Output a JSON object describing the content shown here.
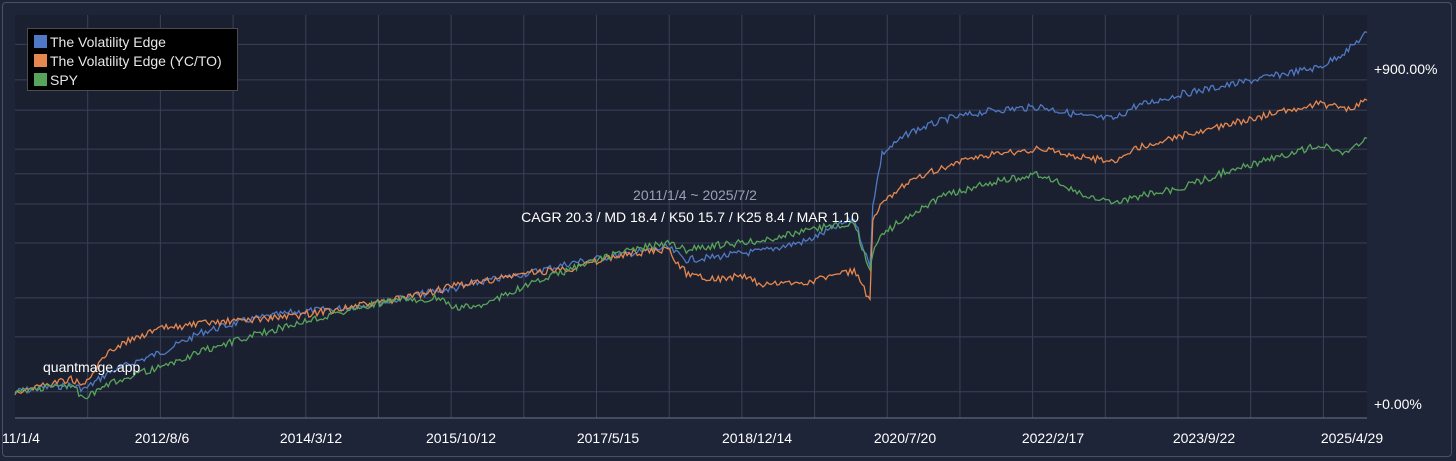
{
  "chart_data": {
    "type": "line",
    "title": "",
    "xlabel": "",
    "ylabel": "",
    "x_tick_labels": [
      "11/1/4",
      "2012/8/6",
      "2014/3/12",
      "2015/10/12",
      "2017/5/15",
      "2018/12/14",
      "2020/7/20",
      "2022/2/17",
      "2023/9/22",
      "2025/4/29"
    ],
    "y_tick_labels": [
      "+900.00%",
      "+0.00%"
    ],
    "y_scale": "log",
    "grid": true,
    "legend_position": "top-left",
    "date_range_label": "2011/1/4 ~ 2025/7/2",
    "stats_label": "CAGR 20.3 / MD 18.4 / K50 15.7 / K25 8.4 / MAR 1.10",
    "watermark": "quantmage.app",
    "series": [
      {
        "name": "The Volatility Edge",
        "color": "#4f79c4",
        "x": [
          2011.0,
          2011.3,
          2011.6,
          2011.75,
          2012.0,
          2012.3,
          2012.6,
          2013.0,
          2013.5,
          2014.0,
          2014.5,
          2015.0,
          2015.5,
          2015.75,
          2016.0,
          2016.5,
          2017.0,
          2017.5,
          2018.0,
          2018.2,
          2018.5,
          2018.8,
          2019.0,
          2019.5,
          2020.0,
          2020.17,
          2020.2,
          2020.3,
          2020.6,
          2021.0,
          2021.5,
          2022.0,
          2022.5,
          2022.8,
          2023.0,
          2023.5,
          2024.0,
          2024.5,
          2025.0,
          2025.3,
          2025.5
        ],
        "values": [
          0,
          3,
          5,
          2,
          15,
          25,
          35,
          55,
          70,
          80,
          85,
          95,
          110,
          115,
          125,
          140,
          160,
          175,
          190,
          165,
          170,
          178,
          182,
          205,
          260,
          150,
          300,
          480,
          580,
          650,
          700,
          720,
          660,
          650,
          720,
          800,
          860,
          930,
          1000,
          1150,
          1320
        ]
      },
      {
        "name": "The Volatility Edge (YC/TO)",
        "color": "#e6874e",
        "x": [
          2011.0,
          2011.3,
          2011.6,
          2011.75,
          2012.0,
          2012.3,
          2012.6,
          2013.0,
          2013.5,
          2014.0,
          2014.5,
          2015.0,
          2015.5,
          2015.75,
          2016.0,
          2016.5,
          2017.0,
          2017.5,
          2018.0,
          2018.2,
          2018.5,
          2018.8,
          2019.0,
          2019.5,
          2020.0,
          2020.17,
          2020.2,
          2020.3,
          2020.6,
          2021.0,
          2021.5,
          2022.0,
          2022.5,
          2022.8,
          2023.0,
          2023.5,
          2024.0,
          2024.5,
          2025.0,
          2025.3,
          2025.5
        ],
        "values": [
          0,
          5,
          10,
          5,
          35,
          50,
          60,
          65,
          70,
          75,
          85,
          95,
          110,
          120,
          125,
          140,
          150,
          175,
          185,
          140,
          130,
          135,
          120,
          125,
          145,
          95,
          250,
          300,
          380,
          430,
          480,
          500,
          460,
          450,
          500,
          560,
          620,
          680,
          740,
          700,
          760
        ]
      },
      {
        "name": "SPY",
        "color": "#58a45c",
        "x": [
          2011.0,
          2011.3,
          2011.6,
          2011.75,
          2012.0,
          2012.3,
          2012.6,
          2013.0,
          2013.5,
          2014.0,
          2014.5,
          2015.0,
          2015.5,
          2015.75,
          2016.0,
          2016.5,
          2017.0,
          2017.5,
          2018.0,
          2018.2,
          2018.5,
          2018.8,
          2019.0,
          2019.5,
          2020.0,
          2020.17,
          2020.2,
          2020.3,
          2020.6,
          2021.0,
          2021.5,
          2022.0,
          2022.5,
          2022.8,
          2023.0,
          2023.5,
          2024.0,
          2024.5,
          2025.0,
          2025.3,
          2025.5
        ],
        "values": [
          0,
          3,
          5,
          -5,
          5,
          15,
          20,
          35,
          50,
          65,
          80,
          95,
          100,
          85,
          90,
          120,
          150,
          180,
          200,
          185,
          195,
          200,
          205,
          230,
          250,
          140,
          180,
          220,
          270,
          330,
          370,
          400,
          320,
          300,
          320,
          350,
          410,
          460,
          520,
          480,
          550
        ]
      }
    ]
  }
}
